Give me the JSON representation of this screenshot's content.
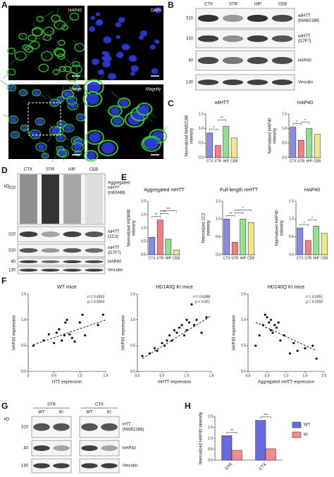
{
  "figure": {
    "A": {
      "letter": "A",
      "images": [
        "HAP40",
        "DAPI",
        "Merge",
        "Magnify"
      ]
    },
    "B": {
      "letter": "B",
      "lanes": [
        "CTX",
        "STR",
        "HIP",
        "CEB"
      ],
      "bands": [
        {
          "label": [
            "wtHTT",
            "(MAB2166)"
          ],
          "marker": 310
        },
        {
          "label": [
            "wtHTT",
            "(D7F7)"
          ],
          "marker": 310
        },
        {
          "label": [
            "HAP40"
          ],
          "marker": 40
        },
        {
          "label": [
            "Vinculin"
          ],
          "marker": 130
        }
      ]
    },
    "C": {
      "letter": "C"
    },
    "D": {
      "letter": "D",
      "unit": "kD",
      "lanes": [
        "CTX",
        "STR",
        "HIP",
        "CEB"
      ],
      "bands": [
        {
          "label": [
            "Aggregated",
            "mHTT",
            "(mEM48)"
          ],
          "marker": 310
        },
        {
          "label": [
            "mHTT",
            "(1C2)"
          ],
          "marker": 310
        },
        {
          "label": [
            "mHTT",
            "(D7F7)"
          ],
          "marker": 310
        },
        {
          "label": [
            "HAP40"
          ],
          "marker": 40
        },
        {
          "label": [
            "Vinculin"
          ],
          "marker": 130
        }
      ]
    },
    "E": {
      "letter": "E"
    },
    "F": {
      "letter": "F"
    },
    "G": {
      "letter": "G",
      "unit": "kD",
      "groups": [
        {
          "name": "STR",
          "lanes": [
            "WT",
            "KI"
          ]
        },
        {
          "name": "CTX",
          "lanes": [
            "WT",
            "KI"
          ]
        }
      ],
      "bands": [
        {
          "label": [
            "HTT",
            "(MAB2166)"
          ],
          "marker": 310
        },
        {
          "label": [
            "HAP40"
          ],
          "marker": 40
        },
        {
          "label": [
            "Vinculin"
          ],
          "marker": 130
        }
      ]
    },
    "H": {
      "letter": "H"
    }
  },
  "chart_data": [
    {
      "type": "bar",
      "title": "wtHTT",
      "ylabel": [
        "Normalized MAB2166",
        "intensity"
      ],
      "categories": [
        "CTX",
        "STR",
        "HIP",
        "CEB"
      ],
      "values": [
        0.85,
        0.42,
        1.08,
        0.68
      ],
      "colors": [
        "#8a8ae6",
        "#f08080",
        "#90e090",
        "#f0e68c"
      ],
      "ylim": [
        0,
        1.5
      ],
      "yticks": [
        {
          "value": 0,
          "label": "0.0"
        },
        0.5,
        {
          "value": 1,
          "label": "1.0"
        },
        1.5
      ],
      "comparisons": [
        {
          "label": "*",
          "pair": [
            "CTX",
            "STR"
          ]
        },
        {
          "label": "**",
          "pair": [
            "STR",
            "HIP"
          ]
        }
      ]
    },
    {
      "type": "bar",
      "title": "HAP40",
      "ylabel": [
        "Normalized HAP40",
        "intensity"
      ],
      "categories": [
        "CTX",
        "STR",
        "HIP",
        "CEB"
      ],
      "values": [
        1.05,
        0.6,
        1.0,
        0.8
      ],
      "colors": [
        "#8a8ae6",
        "#f08080",
        "#90e090",
        "#f0e68c"
      ],
      "ylim": [
        0,
        1.5
      ],
      "yticks": [
        {
          "value": 0,
          "label": "0.0"
        },
        0.5,
        {
          "value": 1,
          "label": "1.0"
        },
        1.5
      ],
      "comparisons": [
        {
          "label": "*",
          "pair": [
            "CTX",
            "STR"
          ]
        },
        {
          "label": "*",
          "pair": [
            "STR",
            "HIP"
          ]
        }
      ]
    },
    {
      "type": "bar",
      "title": "Aggregated mHTT",
      "ylabel": [
        "Normalized mEM48",
        "intensity"
      ],
      "categories": [
        "CTX",
        "STR",
        "HIP",
        "CEB"
      ],
      "values": [
        0.65,
        1.3,
        0.58,
        0.18
      ],
      "colors": [
        "#8a8ae6",
        "#f08080",
        "#90e090",
        "#f0e68c"
      ],
      "ylim": [
        0,
        2
      ],
      "yticks": [
        {
          "value": 0,
          "label": "0.0"
        },
        0.5,
        {
          "value": 1,
          "label": "1.0"
        },
        1.5,
        {
          "value": 2,
          "label": "2.0"
        }
      ],
      "comparisons": [
        {
          "label": "**",
          "pair": [
            "CTX",
            "STR"
          ]
        },
        {
          "label": "***",
          "pair": [
            "STR",
            "HIP"
          ]
        },
        {
          "label": "***",
          "pair": [
            "STR",
            "CEB"
          ]
        }
      ]
    },
    {
      "type": "bar",
      "title": "Full-length mHTT",
      "ylabel": [
        "Normalized 1C2",
        "intensity"
      ],
      "categories": [
        "CTX",
        "STR",
        "HIP",
        "CEB"
      ],
      "values": [
        1.0,
        0.35,
        1.0,
        0.9
      ],
      "colors": [
        "#8a8ae6",
        "#f08080",
        "#90e090",
        "#f0e68c"
      ],
      "ylim": [
        0,
        1.5
      ],
      "yticks": [
        {
          "value": 0,
          "label": "0.0"
        },
        0.5,
        {
          "value": 1,
          "label": "1.0"
        },
        1.5
      ],
      "comparisons": [
        {
          "label": "**",
          "pair": [
            "CTX",
            "STR"
          ]
        },
        {
          "label": "*",
          "pair": [
            "STR",
            "HIP"
          ]
        },
        {
          "label": "*",
          "pair": [
            "STR",
            "CEB"
          ]
        }
      ]
    },
    {
      "type": "bar",
      "title": "HAP40",
      "ylabel": [
        "Normalized HAP40",
        "intensity"
      ],
      "categories": [
        "CTX",
        "STR",
        "HIP",
        "CEB"
      ],
      "values": [
        0.75,
        0.4,
        0.8,
        0.6
      ],
      "colors": [
        "#8a8ae6",
        "#f08080",
        "#90e090",
        "#f0e68c"
      ],
      "ylim": [
        0,
        1.5
      ],
      "yticks": [
        {
          "value": 0,
          "label": "0.0"
        },
        0.5,
        {
          "value": 1,
          "label": "1.0"
        },
        1.5
      ],
      "comparisons": [
        {
          "label": "*",
          "pair": [
            "CTX",
            "STR"
          ]
        },
        {
          "label": "*",
          "pair": [
            "STR",
            "HIP"
          ]
        }
      ]
    },
    {
      "type": "scatter",
      "title": "WT mice",
      "xlabel": "HTT expression",
      "ylabel": "HAP40 expression",
      "x": [
        0.1,
        0.3,
        0.4,
        0.5,
        0.55,
        0.6,
        0.65,
        0.7,
        0.72,
        0.75,
        0.8,
        0.85,
        0.9,
        1.0,
        1.05,
        1.1,
        1.35,
        1.45
      ],
      "values": [
        0.5,
        0.6,
        0.72,
        0.55,
        0.75,
        0.82,
        0.6,
        0.7,
        0.95,
        1.0,
        0.72,
        0.65,
        0.58,
        0.95,
        1.1,
        0.7,
        0.9,
        1.1
      ],
      "trend_line": {
        "x": [
          0.1,
          1.5
        ],
        "values": [
          0.52,
          1.0
        ]
      },
      "annotations": [
        "r² = 0.4353",
        "p = 0.0054"
      ],
      "xlim": [
        0,
        1.5
      ],
      "xticks": [
        0,
        0.5,
        {
          "value": 1,
          "label": "1.0"
        },
        1.5
      ],
      "ylim": [
        0,
        1.5
      ],
      "yticks": [
        {
          "value": 0,
          "label": "0.0"
        },
        0.5,
        {
          "value": 1,
          "label": "1.0"
        },
        1.5
      ]
    },
    {
      "type": "scatter",
      "title": "HD140Q KI mice",
      "xlabel": "mHTT expression",
      "ylabel": "HAP40 expression",
      "x": [
        0.1,
        0.25,
        0.35,
        0.4,
        0.5,
        0.55,
        0.6,
        0.65,
        0.7,
        0.75,
        0.8,
        0.85,
        0.9,
        0.95,
        1.0,
        1.0,
        1.05,
        1.1,
        1.15,
        1.2,
        1.3,
        1.4
      ],
      "values": [
        0.3,
        0.35,
        0.45,
        0.4,
        0.55,
        0.5,
        0.6,
        0.7,
        0.6,
        0.8,
        0.75,
        0.85,
        0.9,
        0.7,
        1.0,
        0.8,
        0.95,
        1.3,
        0.9,
        1.0,
        0.75,
        1.05
      ],
      "trend_line": {
        "x": [
          0.1,
          1.5
        ],
        "values": [
          0.25,
          1.08
        ]
      },
      "annotations": [
        "r² = 0.6288",
        "p < 0.001"
      ],
      "xlim": [
        0,
        1.5
      ],
      "xticks": [
        {
          "value": 0,
          "label": "0.0"
        },
        0.5,
        {
          "value": 1,
          "label": "1.0"
        },
        1.5
      ],
      "ylim": [
        0,
        1.5
      ],
      "yticks": [
        {
          "value": 0,
          "label": "0.0"
        },
        0.5,
        {
          "value": 1,
          "label": "1.0"
        },
        1.5
      ]
    },
    {
      "type": "scatter",
      "title": "HD140Q KI mice",
      "xlabel": "Aggregated mHTT expression",
      "ylabel": "HAP40 expression",
      "x": [
        0.2,
        0.3,
        0.4,
        0.45,
        0.5,
        0.55,
        0.6,
        0.6,
        0.65,
        0.7,
        0.75,
        0.8,
        0.85,
        0.95,
        1.1,
        1.2,
        1.3,
        1.5,
        1.7,
        1.8
      ],
      "values": [
        0.5,
        0.7,
        0.9,
        1.1,
        1.05,
        0.95,
        1.0,
        0.8,
        0.75,
        0.9,
        0.85,
        0.95,
        0.6,
        0.7,
        0.35,
        0.55,
        0.4,
        0.45,
        0.5,
        0.25
      ],
      "trend_line": {
        "x": [
          0.2,
          1.8
        ],
        "values": [
          0.95,
          0.4
        ]
      },
      "annotations": [
        "r² = 0.2051",
        "p = 0.0392"
      ],
      "xlim": [
        0,
        2
      ],
      "xticks": [
        {
          "value": 0,
          "label": "0.0"
        },
        0.5,
        {
          "value": 1,
          "label": "1.0"
        },
        1.5,
        {
          "value": 2,
          "label": "2.0"
        }
      ],
      "ylim": [
        0,
        1.5
      ],
      "yticks": [
        {
          "value": 0,
          "label": "0.0"
        },
        0.5,
        {
          "value": 1,
          "label": "1.0"
        },
        1.5
      ]
    },
    {
      "type": "bar",
      "ylabel": [
        "Normalized HAP40 intensity"
      ],
      "categories": [
        "STR",
        "CTX"
      ],
      "series": [
        {
          "name": "WT",
          "color": "#6a6ae0",
          "values": [
            1.12,
            1.82
          ]
        },
        {
          "name": "KI",
          "color": "#f08c8c",
          "values": [
            0.45,
            0.52
          ]
        }
      ],
      "ylim": [
        0,
        2
      ],
      "yticks": [
        {
          "value": 0,
          "label": "0.0"
        },
        0.5,
        {
          "value": 1,
          "label": "1.0"
        },
        1.5,
        {
          "value": 2,
          "label": "2.0"
        }
      ],
      "comparisons": [
        {
          "label": "**",
          "category": "STR"
        },
        {
          "label": "***",
          "category": "CTX"
        }
      ]
    }
  ]
}
